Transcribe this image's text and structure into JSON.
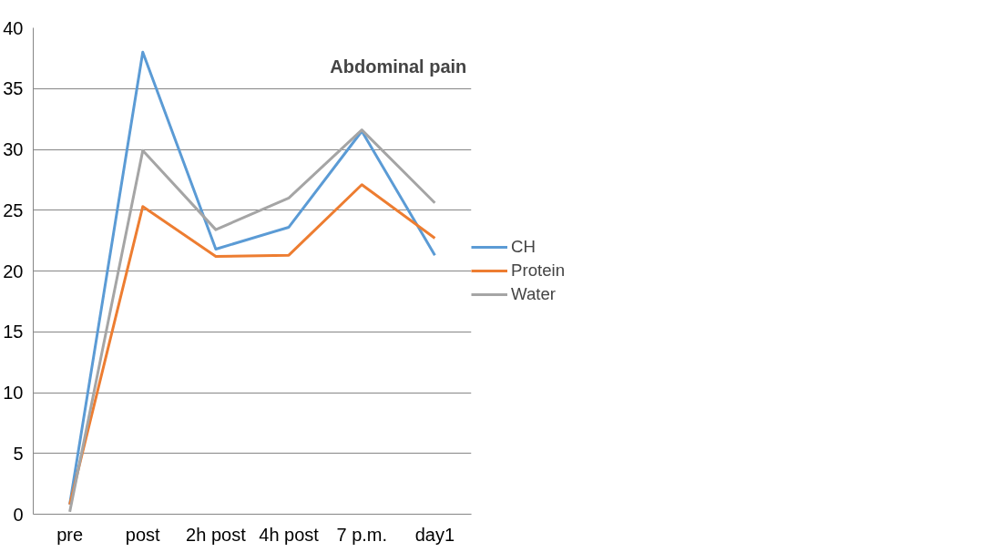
{
  "chart_data": {
    "type": "line",
    "title": "Abdominal pain",
    "categories": [
      "pre",
      "post",
      "2h post",
      "4h post",
      "7 p.m.",
      "day1"
    ],
    "series": [
      {
        "name": "CH",
        "color": "#5b9bd5",
        "values": [
          0.8,
          38.0,
          21.8,
          23.6,
          31.5,
          21.3
        ]
      },
      {
        "name": "Protein",
        "color": "#ed7d31",
        "values": [
          0.8,
          25.3,
          21.2,
          21.3,
          27.1,
          22.7
        ]
      },
      {
        "name": "Water",
        "color": "#a5a5a5",
        "values": [
          0.2,
          29.9,
          23.4,
          26.0,
          31.6,
          25.6
        ]
      }
    ],
    "ylim": [
      0,
      40
    ],
    "yticks": [
      0,
      5,
      10,
      15,
      20,
      25,
      30,
      35,
      40
    ],
    "grid": "y",
    "legend": "right",
    "marker": "none",
    "line_style": "solid"
  }
}
